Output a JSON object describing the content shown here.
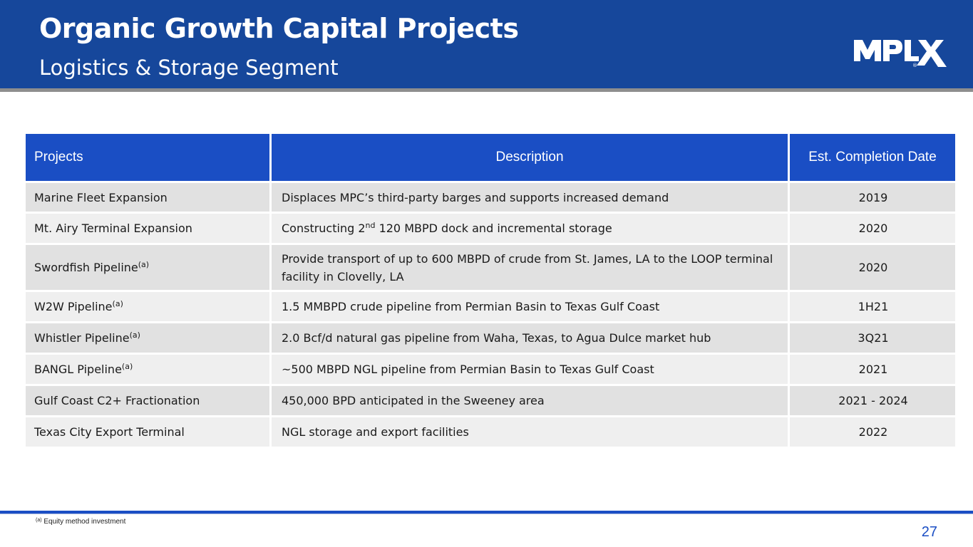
{
  "header": {
    "title": "Organic Growth Capital Projects",
    "subtitle": "Logistics & Storage Segment",
    "logo_text": "MPLX",
    "logo_mark": "®"
  },
  "table": {
    "columns": [
      "Projects",
      "Description",
      "Est. Completion Date"
    ],
    "rows": [
      {
        "project": "Marine Fleet Expansion",
        "project_sup": "",
        "desc_pre": "Displaces MPC’s third-party barges and supports increased demand",
        "desc_sup": "",
        "desc_post": "",
        "date": "2019"
      },
      {
        "project": "Mt. Airy Terminal Expansion",
        "project_sup": "",
        "desc_pre": "Constructing 2",
        "desc_sup": "nd",
        "desc_post": " 120 MBPD dock and incremental storage",
        "date": "2020"
      },
      {
        "project": "Swordfish Pipeline",
        "project_sup": "(a)",
        "desc_pre": "Provide transport of up to 600 MBPD  of crude from St. James, LA to the LOOP terminal facility in Clovelly, LA",
        "desc_sup": "",
        "desc_post": "",
        "date": "2020"
      },
      {
        "project": "W2W Pipeline",
        "project_sup": "(a)",
        "desc_pre": "1.5 MMBPD crude pipeline from Permian Basin to Texas Gulf Coast",
        "desc_sup": "",
        "desc_post": "",
        "date": "1H21"
      },
      {
        "project": "Whistler Pipeline",
        "project_sup": "(a)",
        "desc_pre": "2.0 Bcf/d natural gas pipeline from Waha, Texas, to Agua Dulce market hub",
        "desc_sup": "",
        "desc_post": "",
        "date": "3Q21"
      },
      {
        "project": "BANGL Pipeline",
        "project_sup": "(a)",
        "desc_pre": "~500 MBPD NGL pipeline from Permian Basin to Texas Gulf Coast",
        "desc_sup": "",
        "desc_post": "",
        "date": "2021"
      },
      {
        "project": "Gulf Coast C2+ Fractionation",
        "project_sup": "",
        "desc_pre": "450,000 BPD anticipated in the Sweeney area",
        "desc_sup": "",
        "desc_post": "",
        "date": "2021 - 2024"
      },
      {
        "project": "Texas City Export Terminal",
        "project_sup": "",
        "desc_pre": "NGL storage and export facilities",
        "desc_sup": "",
        "desc_post": "",
        "date": "2022"
      }
    ]
  },
  "footer": {
    "footnote_sup": "(a)",
    "footnote": " Equity method investment",
    "page_number": "27"
  },
  "colors": {
    "header_blue": "#16479b",
    "table_header_blue": "#1a4ec4",
    "row_odd": "#e1e1e1",
    "row_even": "#efefef"
  }
}
